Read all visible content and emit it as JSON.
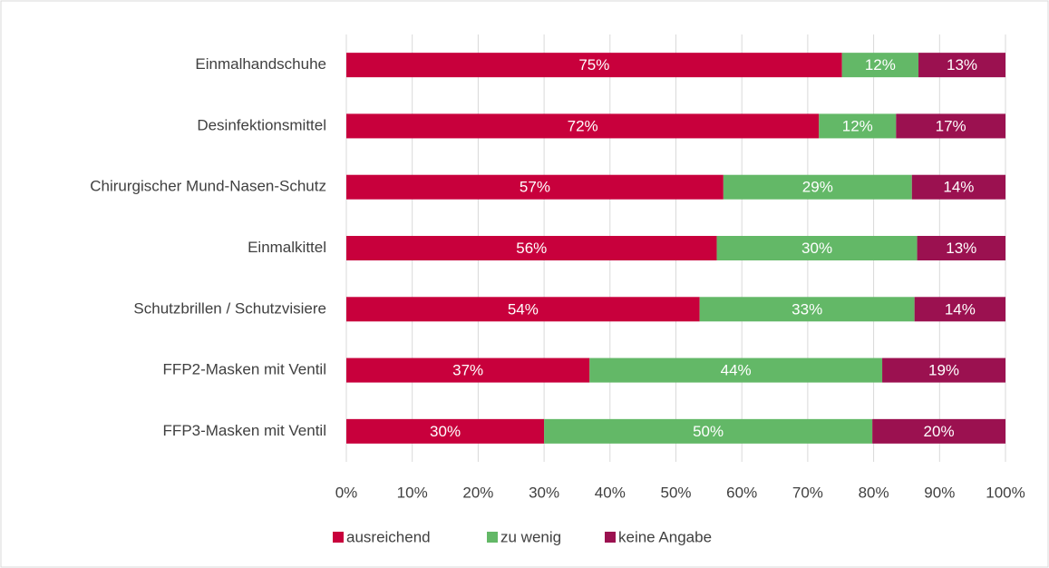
{
  "chart_data": {
    "type": "stacked_barh",
    "categories": [
      "Einmalhandschuhe",
      "Desinfektionsmittel",
      "Chirurgischer Mund-Nasen-Schutz",
      "Einmalkittel",
      "Schutzbrillen / Schutzvisiere",
      "FFP2-Masken mit Ventil",
      "FFP3-Masken mit Ventil"
    ],
    "series": [
      {
        "name": "ausreichend",
        "color": "#c8003c",
        "values": [
          75.2,
          71.7,
          57.2,
          56.2,
          53.6,
          36.9,
          30.0
        ],
        "value_labels": [
          "75%",
          "72%",
          "57%",
          "56%",
          "54%",
          "37%",
          "30%"
        ]
      },
      {
        "name": "zu wenig",
        "color": "#63b867",
        "values": [
          11.6,
          11.7,
          28.6,
          30.4,
          32.6,
          44.4,
          49.8
        ],
        "value_labels": [
          "12%",
          "12%",
          "29%",
          "30%",
          "33%",
          "44%",
          "50%"
        ]
      },
      {
        "name": "keine Angabe",
        "color": "#9b1150",
        "values": [
          13.2,
          16.6,
          14.2,
          13.4,
          13.8,
          18.7,
          20.2
        ],
        "value_labels": [
          "13%",
          "17%",
          "14%",
          "13%",
          "14%",
          "19%",
          "20%"
        ]
      }
    ],
    "xlim": [
      0,
      100
    ],
    "xticks": [
      {
        "value": 0,
        "label": "0%"
      },
      {
        "value": 10,
        "label": "10%"
      },
      {
        "value": 20,
        "label": "20%"
      },
      {
        "value": 30,
        "label": "30%"
      },
      {
        "value": 40,
        "label": "40%"
      },
      {
        "value": 50,
        "label": "50%"
      },
      {
        "value": 60,
        "label": "60%"
      },
      {
        "value": 70,
        "label": "70%"
      },
      {
        "value": 80,
        "label": "80%"
      },
      {
        "value": 90,
        "label": "90%"
      },
      {
        "value": 100,
        "label": "100%"
      }
    ],
    "grid": true,
    "legend": "bottom"
  }
}
